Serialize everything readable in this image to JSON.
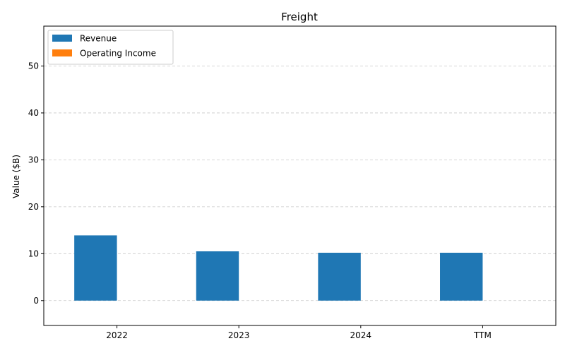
{
  "chart_data": {
    "type": "bar",
    "title": "Freight",
    "xlabel": "",
    "ylabel": "Value ($B)",
    "categories": [
      "2022",
      "2023",
      "2024",
      "TTM"
    ],
    "series": [
      {
        "name": "Revenue",
        "color": "#1f77b4",
        "values": [
          13.9,
          10.5,
          10.2,
          10.2
        ]
      },
      {
        "name": "Operating Income",
        "color": "#ff7f0e",
        "values": [
          0,
          0,
          0,
          0
        ]
      }
    ],
    "ylim": [
      -5.3,
      58.5
    ],
    "yticks": [
      0,
      10,
      20,
      30,
      40,
      50
    ],
    "grid": true,
    "legend_position": "top-left"
  }
}
